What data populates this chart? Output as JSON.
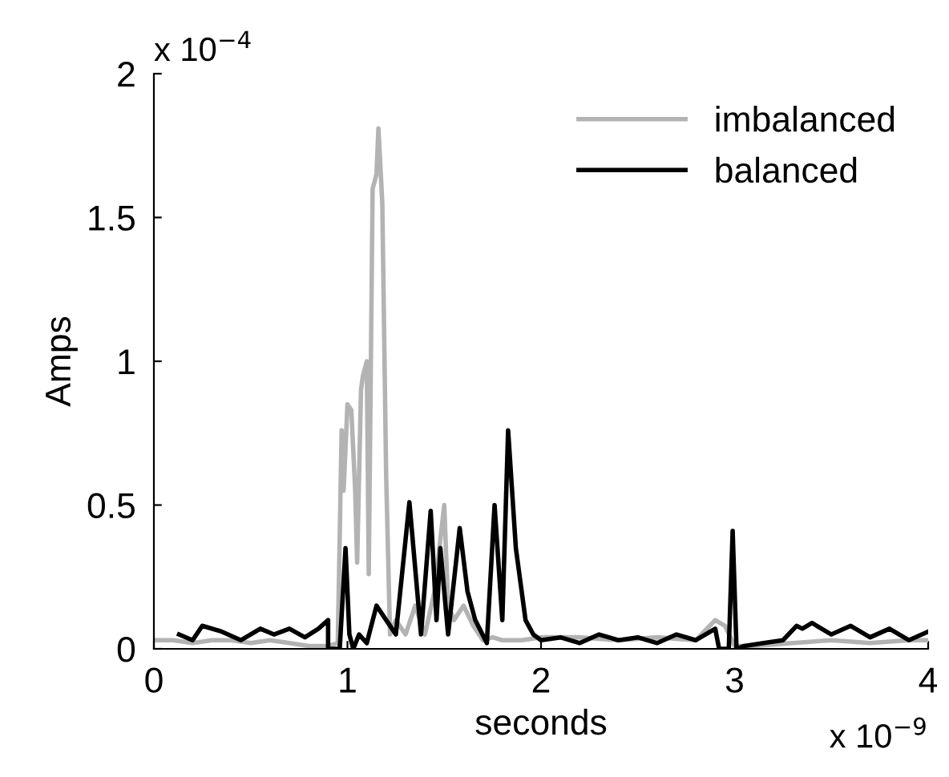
{
  "chart_data": {
    "type": "line",
    "xlabel": "seconds",
    "ylabel": "Amps",
    "xlim": [
      0,
      4
    ],
    "ylim": [
      0,
      2
    ],
    "xticks": [
      0,
      1,
      2,
      3,
      4
    ],
    "yticks": [
      0,
      0.5,
      1,
      1.5,
      2
    ],
    "legend": "top right",
    "grid": false,
    "marker": "none",
    "line_style": "solid",
    "annotations": [
      "x 10$^{−4}$",
      "x 10$^{−9}$"
    ],
    "series": [
      {
        "name": "imbalanced",
        "color": "#b3b3b3",
        "x": [
          0,
          0.1,
          0.2,
          0.3,
          0.4,
          0.5,
          0.6,
          0.7,
          0.8,
          0.9,
          0.95,
          0.97,
          0.98,
          1.0,
          1.02,
          1.04,
          1.05,
          1.07,
          1.08,
          1.1,
          1.11,
          1.13,
          1.15,
          1.16,
          1.18,
          1.2,
          1.22,
          1.25,
          1.3,
          1.35,
          1.4,
          1.45,
          1.5,
          1.52,
          1.55,
          1.6,
          1.65,
          1.7,
          1.75,
          1.8,
          1.9,
          2.0,
          2.2,
          2.4,
          2.6,
          2.8,
          2.9,
          2.95,
          3.0,
          3.1,
          3.3,
          3.5,
          3.7,
          3.9,
          4.0
        ],
        "values": [
          0.03,
          0.03,
          0.02,
          0.03,
          0.03,
          0.02,
          0.03,
          0.02,
          0.01,
          0.01,
          0.02,
          0.76,
          0.55,
          0.85,
          0.83,
          0.55,
          0.3,
          0.9,
          0.95,
          1.0,
          0.26,
          1.6,
          1.65,
          1.81,
          1.55,
          0.6,
          0.05,
          0.1,
          0.05,
          0.15,
          0.05,
          0.2,
          0.5,
          0.15,
          0.1,
          0.15,
          0.08,
          0.03,
          0.04,
          0.03,
          0.03,
          0.04,
          0.04,
          0.03,
          0.04,
          0.03,
          0.1,
          0.08,
          0.01,
          0.01,
          0.02,
          0.03,
          0.02,
          0.03,
          0.03
        ]
      },
      {
        "name": "balanced",
        "color": "#000000",
        "x": [
          0.13,
          0.2,
          0.25,
          0.35,
          0.45,
          0.55,
          0.62,
          0.7,
          0.78,
          0.85,
          0.9,
          0.9,
          0.96,
          0.99,
          1.01,
          1.03,
          1.06,
          1.1,
          1.15,
          1.2,
          1.25,
          1.32,
          1.38,
          1.43,
          1.46,
          1.48,
          1.52,
          1.58,
          1.62,
          1.66,
          1.72,
          1.76,
          1.8,
          1.83,
          1.87,
          1.92,
          1.96,
          2.0,
          2.1,
          2.2,
          2.3,
          2.4,
          2.5,
          2.6,
          2.7,
          2.8,
          2.9,
          2.92,
          2.97,
          2.99,
          3.01,
          3.05,
          3.15,
          3.25,
          3.32,
          3.35,
          3.4,
          3.5,
          3.6,
          3.7,
          3.8,
          3.9,
          4.0
        ],
        "values": [
          0.05,
          0.03,
          0.08,
          0.06,
          0.03,
          0.07,
          0.05,
          0.07,
          0.04,
          0.07,
          0.1,
          0.0,
          0.0,
          0.35,
          0.05,
          0.0,
          0.05,
          0.02,
          0.15,
          0.1,
          0.05,
          0.51,
          0.05,
          0.48,
          0.1,
          0.35,
          0.05,
          0.42,
          0.2,
          0.1,
          0.02,
          0.5,
          0.1,
          0.76,
          0.35,
          0.1,
          0.05,
          0.03,
          0.04,
          0.02,
          0.05,
          0.03,
          0.04,
          0.02,
          0.05,
          0.03,
          0.07,
          0.0,
          0.0,
          0.41,
          0.0,
          0.01,
          0.02,
          0.03,
          0.08,
          0.07,
          0.09,
          0.05,
          0.08,
          0.04,
          0.07,
          0.03,
          0.06
        ]
      }
    ]
  }
}
